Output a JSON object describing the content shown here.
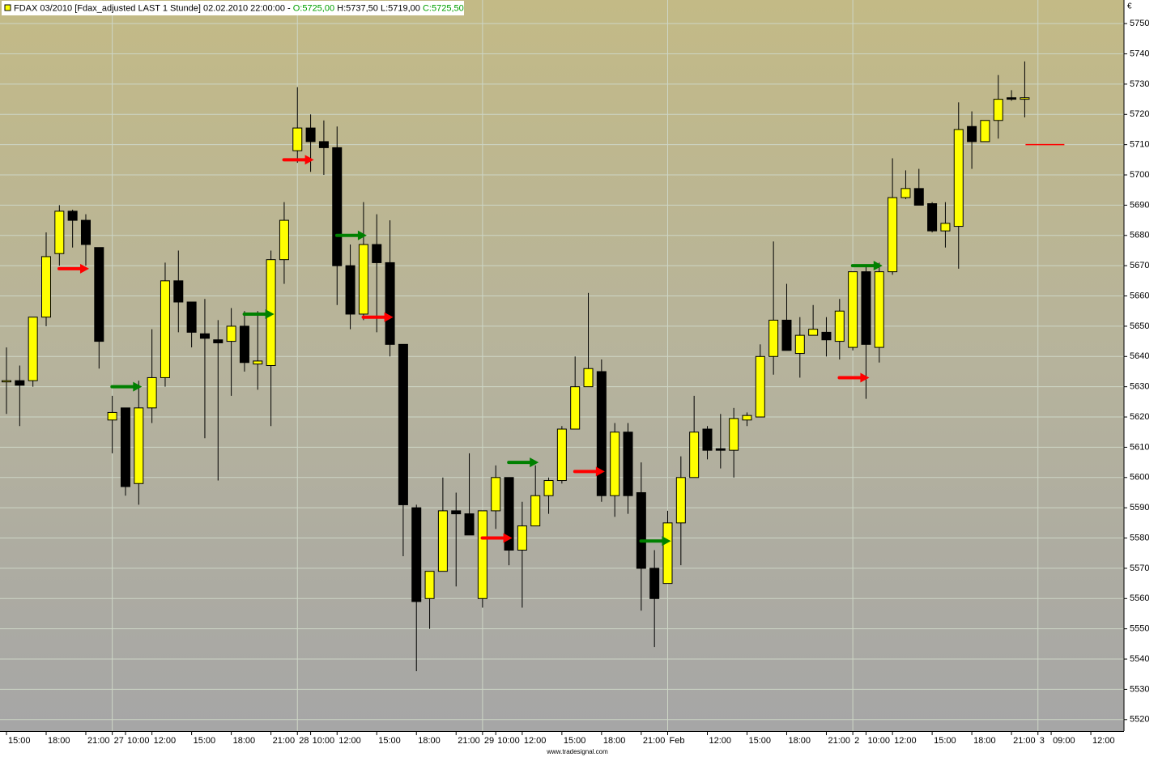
{
  "header": {
    "title": "FDAX 03/2010 [Fdax_adjusted LAST 1 Stunde] 02.02.2010 22:00:00 -",
    "open": "O:5725,00",
    "high": "H:5737,50",
    "low": "L:5719,00",
    "close": "C:5725,50",
    "currency": "€"
  },
  "footer": "www.tradesignal.com",
  "chart_data": {
    "type": "candlestick",
    "categories": [
      "15:00",
      null,
      null,
      "18:00",
      null,
      null,
      "21:00",
      null,
      "27",
      "10:00",
      null,
      "12:00",
      null,
      null,
      "15:00",
      null,
      null,
      "18:00",
      null,
      null,
      "21:00",
      null,
      "28",
      "10:00",
      null,
      "12:00",
      null,
      null,
      "15:00",
      null,
      null,
      "18:00",
      null,
      null,
      "21:00",
      null,
      "29",
      "10:00",
      null,
      "12:00",
      null,
      null,
      "15:00",
      null,
      null,
      "18:00",
      null,
      null,
      "21:00",
      null,
      "Feb",
      null,
      null,
      "12:00",
      null,
      null,
      "15:00",
      null,
      null,
      "18:00",
      null,
      null,
      "21:00",
      null,
      "2",
      "10:00",
      null,
      "12:00",
      null,
      null,
      "15:00",
      null,
      null,
      "18:00",
      null,
      null,
      "21:00",
      null,
      "3",
      "09:00",
      null,
      null,
      "12:00",
      null
    ],
    "open": [
      5632,
      5632,
      5632,
      5653,
      5674,
      5688,
      5685,
      5676,
      5619,
      5623,
      5598,
      5623,
      5633,
      5665,
      5658,
      5647.5,
      5645.5,
      5645,
      5650,
      5637.5,
      5637,
      5672,
      5708,
      5715.5,
      5711,
      5709,
      5670,
      5654,
      5677,
      5671,
      5644,
      5590,
      5560,
      5569,
      5589,
      5588,
      5560,
      5589,
      5600,
      5576,
      5584,
      5594,
      5599,
      5616,
      5630,
      5635,
      5594,
      5615,
      5595,
      5570,
      5565,
      5585,
      5600,
      5616,
      5609.5,
      5609,
      5619,
      5620,
      5640,
      5652,
      5641,
      5647,
      5648,
      5645,
      5643,
      5668,
      5643,
      5668,
      5692.5,
      5695.5,
      5690.5,
      5681.5,
      5683,
      5716,
      5711,
      5718,
      5725.5,
      5725,
      null,
      null,
      null,
      null,
      null,
      null
    ],
    "high": [
      5643,
      5637,
      5653,
      5681,
      5690,
      5688.5,
      5687,
      5676,
      5627,
      5623,
      5632,
      5649,
      5671,
      5675,
      5658,
      5659,
      5652,
      5656,
      5655,
      5655,
      5675,
      5691,
      5729,
      5720,
      5718,
      5716,
      5677,
      5691,
      5687,
      5685,
      5644,
      5591,
      5569,
      5600,
      5595,
      5608,
      5589,
      5604,
      5600,
      5592,
      5604,
      5600,
      5617,
      5640,
      5661,
      5639,
      5618,
      5618,
      5605,
      5576,
      5589,
      5607,
      5627,
      5617,
      5621,
      5623,
      5621.5,
      5644,
      5678,
      5664,
      5653,
      5657,
      5653,
      5659,
      5668,
      5669.5,
      5671,
      5705.5,
      5701.5,
      5702,
      5691,
      5691,
      5724,
      5721,
      5718,
      5733,
      5728,
      5737.5,
      null,
      null,
      null,
      null,
      null,
      null
    ],
    "low": [
      5621,
      5617,
      5630,
      5650,
      5670,
      5676,
      5670,
      5636,
      5608,
      5594,
      5591,
      5618,
      5630,
      5648,
      5643,
      5613,
      5599,
      5627,
      5635,
      5629,
      5617,
      5664,
      5704,
      5701,
      5700,
      5657,
      5649,
      5652,
      5648,
      5640,
      5574,
      5536,
      5550,
      5569,
      5564,
      5581,
      5557,
      5583,
      5571,
      5557,
      5584,
      5588,
      5598,
      5616,
      5630,
      5592,
      5587,
      5588,
      5556,
      5544,
      5565,
      5571,
      5600,
      5606,
      5603,
      5600,
      5617,
      5620,
      5634,
      5642,
      5633,
      5647,
      5640,
      5639,
      5642,
      5626,
      5638,
      5667,
      5692,
      5690,
      5681,
      5676,
      5669,
      5702,
      5711,
      5712,
      5724.5,
      5719,
      null,
      null,
      null,
      null,
      null,
      null
    ],
    "close": [
      5632,
      5630.5,
      5653,
      5673,
      5688,
      5685,
      5677,
      5645,
      5621.5,
      5597,
      5623,
      5633,
      5665,
      5658,
      5648,
      5646,
      5644.5,
      5650,
      5638,
      5638.5,
      5672,
      5685,
      5715.5,
      5711,
      5709,
      5670,
      5654,
      5677,
      5671,
      5644,
      5591,
      5559,
      5569,
      5589,
      5588,
      5581,
      5589,
      5600,
      5576,
      5584,
      5594,
      5599,
      5616,
      5630,
      5636,
      5594,
      5615,
      5594,
      5570,
      5560,
      5585,
      5600,
      5615,
      5609,
      5609,
      5619.5,
      5620.5,
      5640,
      5652,
      5642,
      5647,
      5649,
      5645.5,
      5655,
      5668,
      5644,
      5668,
      5692.5,
      5695.5,
      5690,
      5681.5,
      5684,
      5715,
      5711,
      5718,
      5725,
      5725,
      5725.5,
      null,
      null,
      null,
      null,
      null,
      null
    ],
    "up_color": "#ffff00",
    "down_color": "#000000",
    "buy_signals": {
      "color": "#008000",
      "values": [
        null,
        null,
        null,
        null,
        null,
        null,
        null,
        null,
        null,
        null,
        5630,
        null,
        null,
        null,
        null,
        null,
        null,
        null,
        null,
        null,
        5654,
        null,
        null,
        null,
        null,
        null,
        null,
        5680,
        null,
        null,
        null,
        null,
        null,
        null,
        null,
        null,
        null,
        null,
        null,
        null,
        5605,
        null,
        null,
        null,
        null,
        null,
        null,
        null,
        null,
        null,
        5579,
        null,
        null,
        null,
        null,
        null,
        null,
        null,
        null,
        null,
        null,
        null,
        null,
        null,
        null,
        null,
        5670,
        null,
        null,
        null,
        null,
        null,
        null,
        null,
        null,
        null,
        null,
        null,
        null,
        null,
        null,
        null,
        null,
        null
      ]
    },
    "sell_signals": {
      "color": "#ff0000",
      "values": [
        null,
        null,
        null,
        null,
        null,
        null,
        5669,
        null,
        null,
        null,
        null,
        null,
        null,
        null,
        null,
        null,
        null,
        null,
        null,
        null,
        null,
        null,
        null,
        5705,
        null,
        null,
        null,
        null,
        null,
        5653,
        null,
        null,
        null,
        null,
        null,
        null,
        null,
        null,
        5580,
        null,
        null,
        null,
        null,
        null,
        null,
        5602,
        null,
        null,
        null,
        null,
        null,
        null,
        null,
        null,
        null,
        null,
        null,
        null,
        null,
        null,
        null,
        null,
        null,
        null,
        null,
        5633,
        null,
        null,
        null,
        null,
        null,
        null,
        null,
        null,
        null,
        null,
        null,
        null,
        null,
        null,
        null,
        null,
        null,
        null
      ]
    },
    "reference_line": {
      "value": 5710,
      "color": "#ff0000"
    },
    "ylim": [
      5516.2,
      5757.8
    ],
    "yticks": [
      5520,
      5530,
      5540,
      5550,
      5560,
      5570,
      5580,
      5590,
      5600,
      5610,
      5620,
      5630,
      5640,
      5650,
      5660,
      5670,
      5680,
      5690,
      5700,
      5710,
      5720,
      5730,
      5740,
      5750
    ],
    "grid": true
  }
}
